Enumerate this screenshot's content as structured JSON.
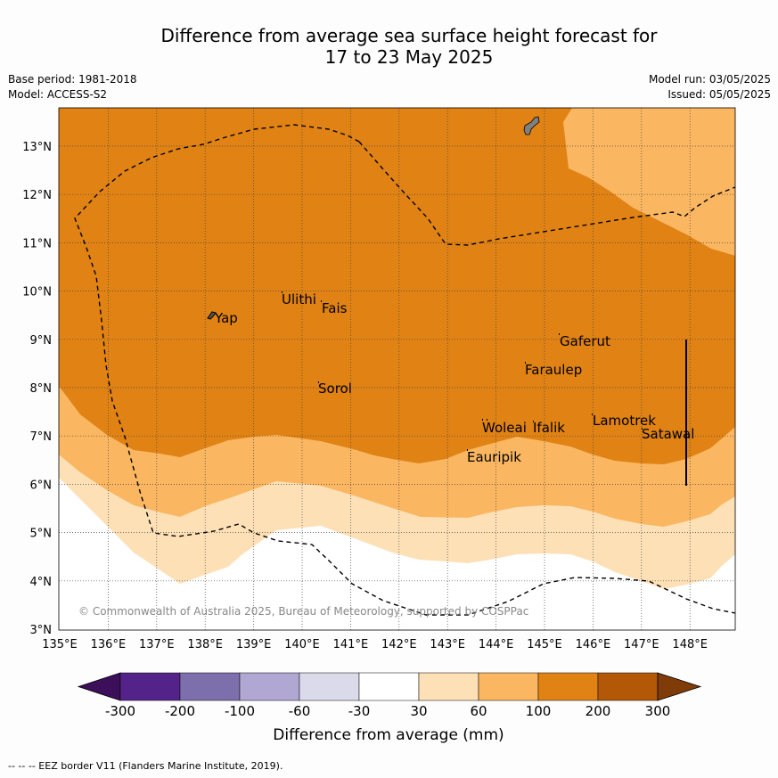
{
  "header": {
    "title_line1": "Difference from average sea surface height forecast for",
    "title_line2": "17 to 23 May 2025",
    "base_period": "Base period: 1981-2018",
    "model": "Model: ACCESS-S2",
    "model_run": "Model run: 03/05/2025",
    "issued": "Issued: 05/05/2025"
  },
  "map": {
    "lon_ticks": [
      "135°E",
      "136°E",
      "137°E",
      "138°E",
      "139°E",
      "140°E",
      "141°E",
      "142°E",
      "143°E",
      "144°E",
      "145°E",
      "146°E",
      "147°E",
      "148°E"
    ],
    "lat_ticks": [
      "3°N",
      "4°N",
      "5°N",
      "6°N",
      "7°N",
      "8°N",
      "9°N",
      "10°N",
      "11°N",
      "12°N",
      "13°N"
    ],
    "places": [
      {
        "name": "Yap"
      },
      {
        "name": "Ulithi"
      },
      {
        "name": "Fais"
      },
      {
        "name": "Sorol"
      },
      {
        "name": "Gaferut"
      },
      {
        "name": "Faraulep"
      },
      {
        "name": "Woleai"
      },
      {
        "name": "Ifalik"
      },
      {
        "name": "Eauripik"
      },
      {
        "name": "Lamotrek"
      },
      {
        "name": "Satawal"
      }
    ],
    "copyright": "© Commonwealth of Australia 2025, Bureau of Meteorology, supported by COSPPac"
  },
  "colorbar": {
    "labels": [
      "-300",
      "-200",
      "-100",
      "-60",
      "-30",
      "30",
      "60",
      "100",
      "200",
      "300"
    ],
    "colors": [
      "#3d0f5a",
      "#54238a",
      "#7d6fac",
      "#b0a8d3",
      "#dadaeb",
      "#ffffff",
      "#fee0b6",
      "#fab660",
      "#e08214",
      "#b35806",
      "#7f3b08"
    ],
    "xlabel": "Difference from average (mm)"
  },
  "footer": {
    "eez_note": "--  --  -- EEZ border V11 (Flanders Marine Institute, 2019)."
  }
}
